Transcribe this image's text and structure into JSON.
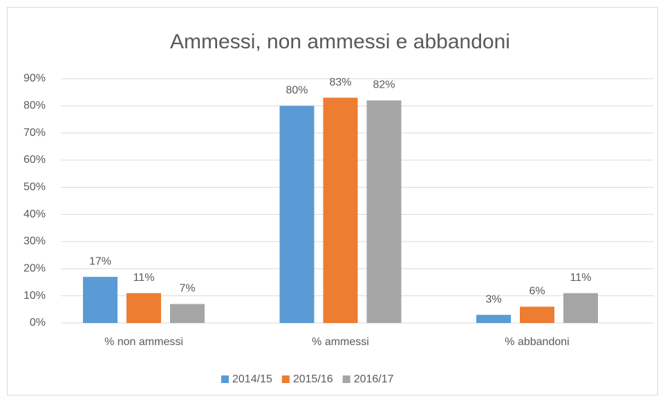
{
  "chart_data": {
    "type": "bar",
    "title": "Ammessi, non ammessi e abbandoni",
    "categories": [
      "% non ammessi",
      "% ammessi",
      "% abbandoni"
    ],
    "series": [
      {
        "name": "2014/15",
        "color": "#5b9bd5",
        "values": [
          17,
          80,
          3
        ],
        "value_labels": [
          "17%",
          "80%",
          "3%"
        ]
      },
      {
        "name": "2015/16",
        "color": "#ed7d31",
        "values": [
          11,
          83,
          6
        ],
        "value_labels": [
          "11%",
          "83%",
          "6%"
        ]
      },
      {
        "name": "2016/17",
        "color": "#a5a5a5",
        "values": [
          7,
          82,
          11
        ],
        "value_labels": [
          "7%",
          "82%",
          "11%"
        ]
      }
    ],
    "ylim": [
      0,
      90
    ],
    "yticks": [
      {
        "value": 0,
        "label": "0%"
      },
      {
        "value": 10,
        "label": "10%"
      },
      {
        "value": 20,
        "label": "20%"
      },
      {
        "value": 30,
        "label": "30%"
      },
      {
        "value": 40,
        "label": "40%"
      },
      {
        "value": 50,
        "label": "50%"
      },
      {
        "value": 60,
        "label": "60%"
      },
      {
        "value": 70,
        "label": "70%"
      },
      {
        "value": 80,
        "label": "80%"
      },
      {
        "value": 90,
        "label": "90%"
      }
    ],
    "grid": true,
    "legend": "bottom"
  }
}
